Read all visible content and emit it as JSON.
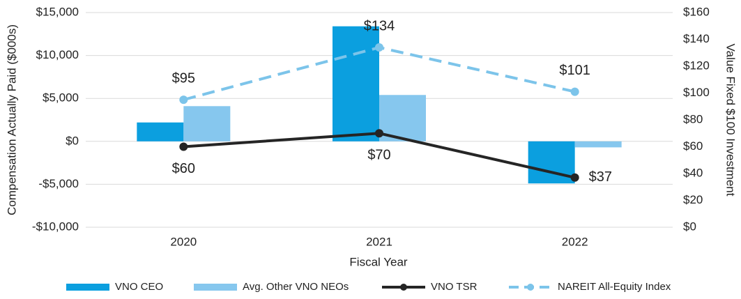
{
  "chart_data": {
    "type": "bar",
    "categories": [
      "2020",
      "2021",
      "2022"
    ],
    "xlabel": "Fiscal Year",
    "ylabel": "Compensation Actually Paid ($000s)",
    "y2label": "Value Fixed $100 Investment",
    "ylim": [
      -10000,
      15000
    ],
    "yticks": [
      {
        "value": -10000,
        "label": "-$10,000"
      },
      {
        "value": -5000,
        "label": "-$5,000"
      },
      {
        "value": 0,
        "label": "$0"
      },
      {
        "value": 5000,
        "label": "$5,000"
      },
      {
        "value": 10000,
        "label": "$10,000"
      },
      {
        "value": 15000,
        "label": "$15,000"
      }
    ],
    "y2lim": [
      0,
      160
    ],
    "y2ticks": [
      {
        "value": 0,
        "label": "$0"
      },
      {
        "value": 20,
        "label": "$20"
      },
      {
        "value": 40,
        "label": "$40"
      },
      {
        "value": 60,
        "label": "$60"
      },
      {
        "value": 80,
        "label": "$80"
      },
      {
        "value": 100,
        "label": "$100"
      },
      {
        "value": 120,
        "label": "$120"
      },
      {
        "value": 140,
        "label": "$140"
      },
      {
        "value": 160,
        "label": "$160"
      }
    ],
    "grid": true,
    "legend": "bottom",
    "series": [
      {
        "name": "VNO CEO",
        "type": "bar",
        "color": "#0b9fdf",
        "values": [
          2200,
          13400,
          -4900
        ]
      },
      {
        "name": "Avg. Other VNO NEOs",
        "type": "bar",
        "color": "#86c7ee",
        "values": [
          4100,
          5400,
          -700
        ]
      },
      {
        "name": "VNO TSR",
        "type": "line",
        "axis": "y2",
        "color": "#252525",
        "values": [
          60,
          70,
          37
        ],
        "value_labels": [
          "$60",
          "$70",
          "$37"
        ]
      },
      {
        "name": "NAREIT All-Equity Index",
        "type": "line",
        "axis": "y2",
        "dashed": true,
        "color": "#7cc4ea",
        "values": [
          95,
          134,
          101
        ],
        "value_labels": [
          "$95",
          "$134",
          "$101"
        ]
      }
    ]
  }
}
